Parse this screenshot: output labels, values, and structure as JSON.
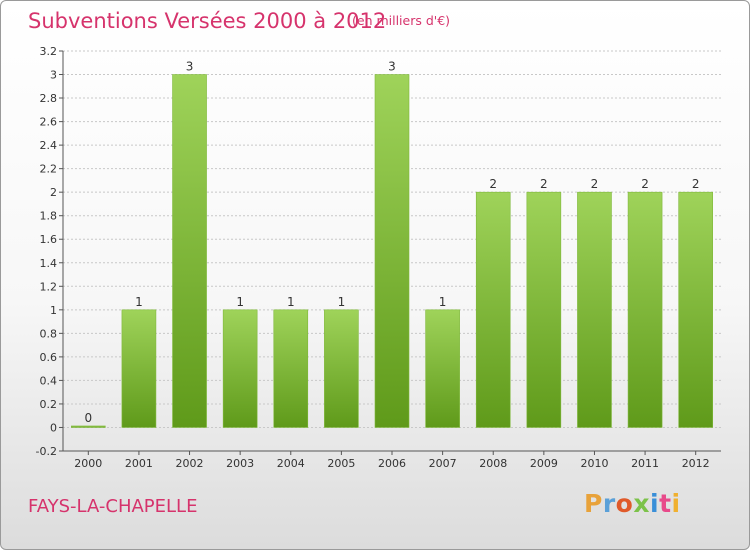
{
  "header": {
    "title": "Subventions Versées 2000 à 2012",
    "subtitle": "(en milliers d'€)"
  },
  "footer": {
    "commune": "FAYS-LA-CHAPELLE",
    "brand": "Proxiti",
    "brand_colors": [
      "#e8a23a",
      "#5aa0d8",
      "#e05a2a",
      "#7cc24a",
      "#3a8fd8",
      "#e84a8a",
      "#f0b030"
    ]
  },
  "colors": {
    "bar_light": "#9fd35a",
    "bar_dark": "#5f9a1a",
    "text_accent": "#d6336c"
  },
  "chart_data": {
    "type": "bar",
    "title": "Subventions Versées 2000 à 2012",
    "xlabel": "",
    "ylabel": "",
    "categories": [
      "2000",
      "2001",
      "2002",
      "2003",
      "2004",
      "2005",
      "2006",
      "2007",
      "2008",
      "2009",
      "2010",
      "2011",
      "2012"
    ],
    "values": [
      0,
      1,
      3,
      1,
      1,
      1,
      3,
      1,
      2,
      2,
      2,
      2,
      2
    ],
    "data_labels": [
      "0",
      "1",
      "3",
      "1",
      "1",
      "1",
      "3",
      "1",
      "2",
      "2",
      "2",
      "2",
      "2"
    ],
    "ylim": [
      -0.2,
      3.2
    ],
    "yticks": [
      -0.2,
      0,
      0.2,
      0.4,
      0.6,
      0.8,
      1,
      1.2,
      1.4,
      1.6,
      1.8,
      2,
      2.2,
      2.4,
      2.6,
      2.8,
      3,
      3.2
    ],
    "ytick_labels": [
      "-0.2",
      "0",
      "0.2",
      "0.4",
      "0.6",
      "0.8",
      "1",
      "1.2",
      "1.4",
      "1.6",
      "1.8",
      "2",
      "2.2",
      "2.4",
      "2.6",
      "2.8",
      "3",
      "3.2"
    ],
    "grid": true
  }
}
